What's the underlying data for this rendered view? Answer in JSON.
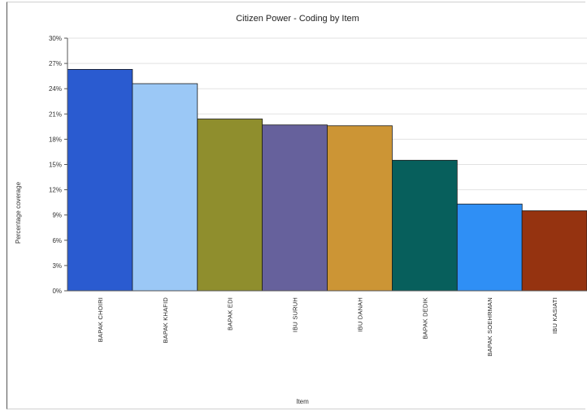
{
  "chart_data": {
    "type": "bar",
    "title": "Citizen Power - Coding by Item",
    "xlabel": "Item",
    "ylabel": "Percentage coverage",
    "ylim": [
      0,
      30
    ],
    "yticks": [
      "0%",
      "3%",
      "6%",
      "9%",
      "12%",
      "15%",
      "18%",
      "21%",
      "24%",
      "27%",
      "30%"
    ],
    "grid": true,
    "categories": [
      "BAPAK CHOIRI",
      "BAPAK KHAFID",
      "BAPAK EDI",
      "IBU SURUH",
      "IBU DANAH",
      "BAPAK DEDIK",
      "BAPAK SOEHRMAN",
      "IBU KASIATI"
    ],
    "values": [
      26.3,
      24.6,
      20.4,
      19.7,
      19.6,
      15.5,
      10.3,
      9.5
    ],
    "colors": [
      "#2a5bd0",
      "#9bc8f6",
      "#8f8e2d",
      "#66619c",
      "#cc9535",
      "#075f5c",
      "#2f8ff5",
      "#953310"
    ]
  }
}
